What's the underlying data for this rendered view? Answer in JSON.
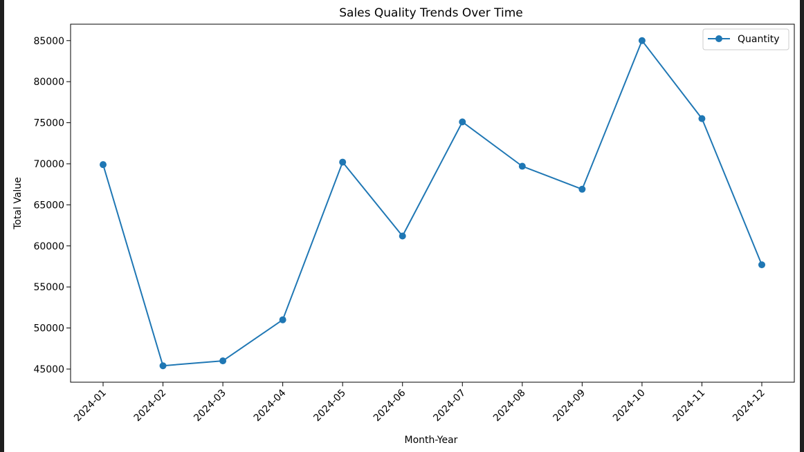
{
  "chart_data": {
    "type": "line",
    "title": "Sales Quality Trends Over Time",
    "xlabel": "Month-Year",
    "ylabel": "Total Value",
    "categories": [
      "2024-01",
      "2024-02",
      "2024-03",
      "2024-04",
      "2024-05",
      "2024-06",
      "2024-07",
      "2024-08",
      "2024-09",
      "2024-10",
      "2024-11",
      "2024-12"
    ],
    "series": [
      {
        "name": "Quantity",
        "color": "#1f77b4",
        "marker": "circle",
        "values": [
          69900,
          45400,
          46000,
          51000,
          70200,
          61200,
          75100,
          69700,
          66900,
          85000,
          75500,
          57700
        ]
      }
    ],
    "ylim": [
      43400,
      87000
    ],
    "yticks": [
      45000,
      50000,
      55000,
      60000,
      65000,
      70000,
      75000,
      80000,
      85000
    ],
    "legend_position": "top-right",
    "grid": false
  }
}
